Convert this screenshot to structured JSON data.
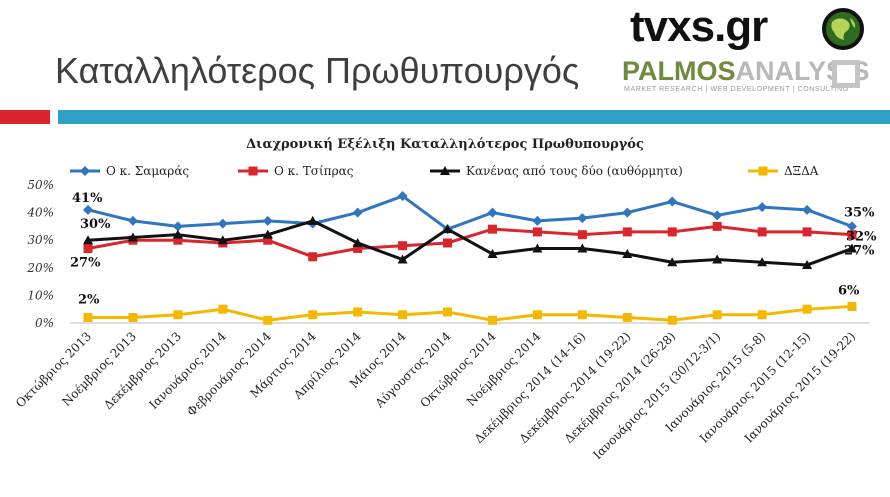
{
  "slide": {
    "title": "Καταλληλότερος Πρωθυπουργός",
    "logo_tvxs": "tvxs.gr",
    "logo_palmos_1": "PALMOS",
    "logo_palmos_2": "ANALYSIS",
    "logo_palmos_sub": "MARKET RESEARCH | WEB DEVELOPMENT | CONSULTING"
  },
  "chart_data": {
    "type": "line",
    "title": "Διαχρονική Εξέλιξη Καταλληλότερος Πρωθυπουργός",
    "xlabel": "",
    "ylabel": "",
    "ylim": [
      0,
      50
    ],
    "yticks": [
      0,
      10,
      20,
      30,
      40,
      50
    ],
    "ytick_labels": [
      "0%",
      "10%",
      "20%",
      "30%",
      "40%",
      "50%"
    ],
    "grid": false,
    "legend_position": "top",
    "categories": [
      "Οκτώβριος 2013",
      "Νοέμβριος 2013",
      "Δεκέμβριος 2013",
      "Ιανουάριος 2014",
      "Φεβρουάριος 2014",
      "Μάρτιος 2014",
      "Απρίλιος 2014",
      "Μάιος 2014",
      "Αύγουστος 2014",
      "Οκτώβριος 2014",
      "Νοέμβριος 2014",
      "Δεκέμβριος 2014 (14-16)",
      "Δεκέμβριος 2014 (19-22)",
      "Δεκέμβριος 2014 (26-28)",
      "Ιανουάριος 2015 (30/12-3/1)",
      "Ιανουάριος 2015 (5-8)",
      "Ιανουάριος 2015 (12-15)",
      "Ιανουάριος 2015 (19-22)"
    ],
    "series": [
      {
        "name": "Ο κ. Σαμαράς",
        "color": "#2f75c0",
        "marker": "diamond",
        "values": [
          41,
          37,
          35,
          36,
          37,
          36,
          40,
          46,
          34,
          40,
          37,
          38,
          40,
          44,
          39,
          42,
          41,
          35
        ],
        "labels": {
          "0": "41%",
          "17": "35%"
        }
      },
      {
        "name": "Ο κ. Τσίπρας",
        "color": "#d9262c",
        "marker": "square",
        "values": [
          27,
          30,
          30,
          29,
          30,
          24,
          27,
          28,
          29,
          34,
          33,
          32,
          33,
          33,
          35,
          33,
          33,
          32
        ],
        "labels": {
          "0": "27%",
          "17": "32%"
        }
      },
      {
        "name": "Κανένας από τους δύο (αυθόρμητα)",
        "color": "#111111",
        "marker": "triangle",
        "values": [
          30,
          31,
          32,
          30,
          32,
          37,
          29,
          23,
          34,
          25,
          27,
          27,
          25,
          22,
          23,
          22,
          21,
          27
        ],
        "labels": {
          "0": "30%",
          "17": "27%"
        }
      },
      {
        "name": "ΔΞΔΑ",
        "color": "#f5b800",
        "marker": "square",
        "values": [
          2,
          2,
          3,
          5,
          1,
          3,
          4,
          3,
          4,
          1,
          3,
          3,
          2,
          1,
          3,
          3,
          5,
          6
        ],
        "labels": {
          "0": "2%",
          "17": "6%"
        }
      }
    ]
  }
}
